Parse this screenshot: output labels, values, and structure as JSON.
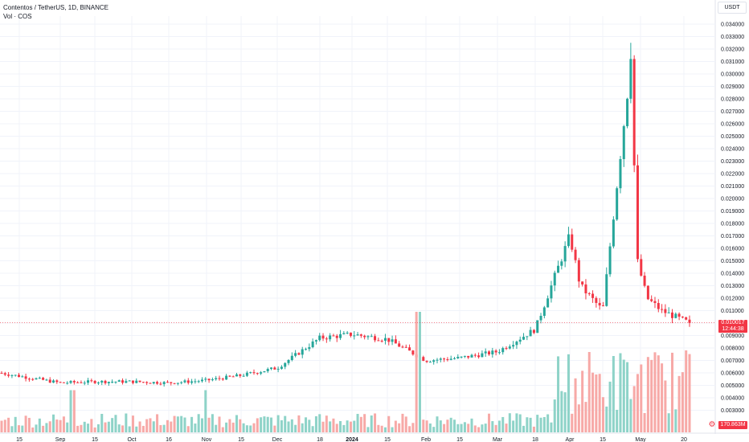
{
  "legend": {
    "title": "Contentos / TetherUS, 1D, BINANCE",
    "volume_label": "Vol · COS"
  },
  "currency": "USDT",
  "last_price": "0.010017",
  "countdown": "12:44:38",
  "last_volume": "170.863M",
  "colors": {
    "up": "#26a69a",
    "down": "#f23645",
    "up_volume": "#8ed3c8",
    "down_volume": "#f7a9a7",
    "grid": "#f0f3fa",
    "axis_text": "#131722"
  },
  "icons": {
    "settings": "settings-icon"
  },
  "chart_data": {
    "type": "candlestick",
    "title": "Contentos / TetherUS, 1D, BINANCE",
    "price_axis": {
      "ticks": [
        "0.003000",
        "0.004000",
        "0.005000",
        "0.006000",
        "0.007000",
        "0.008000",
        "0.009000",
        "0.010000",
        "0.011000",
        "0.012000",
        "0.013000",
        "0.014000",
        "0.015000",
        "0.016000",
        "0.017000",
        "0.018000",
        "0.019000",
        "0.020000",
        "0.021000",
        "0.022000",
        "0.023000",
        "0.024000",
        "0.025000",
        "0.026000",
        "0.027000",
        "0.028000",
        "0.029000",
        "0.030000",
        "0.031000",
        "0.032000",
        "0.033000",
        "0.034000"
      ],
      "range": [
        0.0027,
        0.0348
      ],
      "scale": "linear"
    },
    "time_axis": {
      "labels": [
        "15",
        "Sep",
        "15",
        "Oct",
        "16",
        "Nov",
        "15",
        "Dec",
        "18",
        "2024",
        "15",
        "Feb",
        "15",
        "Mar",
        "18",
        "Apr",
        "15",
        "May",
        "20"
      ]
    },
    "grid": true,
    "approx_closes": [
      {
        "date": "Aug 15",
        "close": 0.006
      },
      {
        "date": "Sep 1",
        "close": 0.0052
      },
      {
        "date": "Sep 15",
        "close": 0.0053
      },
      {
        "date": "Oct 1",
        "close": 0.0053
      },
      {
        "date": "Oct 16",
        "close": 0.0052
      },
      {
        "date": "Nov 1",
        "close": 0.0054
      },
      {
        "date": "Nov 15",
        "close": 0.0058
      },
      {
        "date": "Dec 1",
        "close": 0.0064
      },
      {
        "date": "Dec 18",
        "close": 0.0088
      },
      {
        "date": "Jan 1",
        "close": 0.0091
      },
      {
        "date": "Jan 15",
        "close": 0.0087
      },
      {
        "date": "Feb 1",
        "close": 0.007
      },
      {
        "date": "Feb 15",
        "close": 0.0072
      },
      {
        "date": "Mar 1",
        "close": 0.0077
      },
      {
        "date": "Mar 18",
        "close": 0.0095
      },
      {
        "date": "Apr 1",
        "close": 0.017
      },
      {
        "date": "Apr 8",
        "close": 0.013
      },
      {
        "date": "Apr 15",
        "close": 0.011
      },
      {
        "date": "Apr 22",
        "close": 0.031
      },
      {
        "date": "Apr 26",
        "close": 0.015
      },
      {
        "date": "May 1",
        "close": 0.012
      },
      {
        "date": "May 10",
        "close": 0.011
      },
      {
        "date": "May 20",
        "close": 0.01
      }
    ],
    "last_close": 0.010017,
    "high": 0.0325,
    "volume_series": "Vol · COS"
  }
}
